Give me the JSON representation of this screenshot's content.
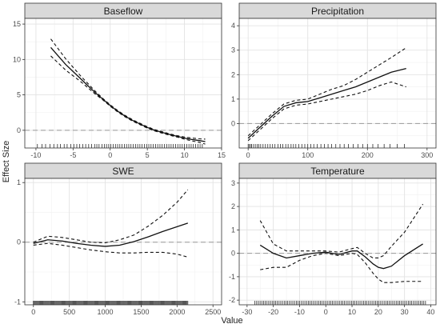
{
  "figure": {
    "ylabel": "Effect Size",
    "xlabel": "Value"
  },
  "chart_data": [
    {
      "type": "line",
      "title": "Baseflow",
      "xlim": [
        -11.5,
        15
      ],
      "ylim": [
        -2.5,
        15.8
      ],
      "xticks": [
        -10,
        -5,
        0,
        5,
        10,
        15
      ],
      "yticks": [
        -5,
        0,
        5,
        10,
        15
      ],
      "zero_line": 0,
      "series": [
        {
          "x": [
            -8,
            -7,
            -6,
            -5,
            -4,
            -3,
            -2,
            -1,
            0,
            1,
            2,
            3,
            4,
            5,
            6,
            7,
            8,
            9,
            10,
            11,
            12,
            12.8
          ],
          "y": [
            11.7,
            10.5,
            9.3,
            8.3,
            7.3,
            6.3,
            5.3,
            4.4,
            3.5,
            2.7,
            2.0,
            1.4,
            0.9,
            0.4,
            0.0,
            -0.3,
            -0.6,
            -0.85,
            -1.1,
            -1.3,
            -1.45,
            -1.6
          ]
        },
        {
          "x": [
            -8,
            -7,
            -6,
            -5,
            -4,
            -3,
            -2,
            -1,
            0,
            1,
            2,
            3,
            4,
            5,
            6,
            7,
            8,
            9,
            10,
            11,
            12,
            12.8
          ],
          "y": [
            12.9,
            11.5,
            10.1,
            8.9,
            7.7,
            6.6,
            5.5,
            4.5,
            3.6,
            2.8,
            2.1,
            1.5,
            1.0,
            0.5,
            0.1,
            -0.2,
            -0.5,
            -0.75,
            -0.95,
            -1.1,
            -1.2,
            -1.25
          ],
          "dash": true
        },
        {
          "x": [
            -8,
            -7,
            -6,
            -5,
            -4,
            -3,
            -2,
            -1,
            0,
            1,
            2,
            3,
            4,
            5,
            6,
            7,
            8,
            9,
            10,
            11,
            12,
            12.8
          ],
          "y": [
            10.5,
            9.5,
            8.5,
            7.7,
            6.9,
            6.0,
            5.1,
            4.3,
            3.4,
            2.6,
            1.9,
            1.3,
            0.8,
            0.3,
            -0.1,
            -0.4,
            -0.7,
            -0.95,
            -1.25,
            -1.5,
            -1.7,
            -1.95
          ],
          "dash": true
        }
      ],
      "rug": [
        -9.8,
        -9.2,
        -8.7,
        -8.1,
        -7.6,
        -7.1,
        -6.7,
        -6.2,
        -5.8,
        -5.3,
        -4.9,
        -4.5,
        -4.1,
        -3.7,
        -3.3,
        -2.9,
        -2.5,
        -2.1,
        -1.8,
        -1.5,
        -1.1,
        -0.8,
        -0.5,
        -0.2,
        0.1,
        0.4,
        0.7,
        1.0,
        1.3,
        1.6,
        1.9,
        2.2,
        2.5,
        2.8,
        3.1,
        3.4,
        3.7,
        4.0,
        4.3,
        4.6,
        4.9,
        5.2,
        5.5,
        5.8,
        6.1,
        6.4,
        6.7,
        7.0,
        7.3,
        7.6,
        7.9,
        8.2,
        8.5,
        8.8,
        9.1,
        9.4,
        9.7,
        10.0,
        10.3,
        10.6,
        10.9,
        11.2,
        11.5,
        11.8,
        12.1,
        12.4
      ]
    },
    {
      "type": "line",
      "title": "Precipitation",
      "xlim": [
        -15,
        315
      ],
      "ylim": [
        -1.0,
        4.3
      ],
      "xticks": [
        0,
        100,
        200,
        300
      ],
      "yticks": [
        0,
        1,
        2,
        3,
        4
      ],
      "zero_line": 0,
      "series": [
        {
          "x": [
            0,
            20,
            40,
            60,
            80,
            100,
            120,
            140,
            160,
            180,
            200,
            220,
            240,
            265
          ],
          "y": [
            -0.6,
            -0.15,
            0.3,
            0.7,
            0.85,
            0.9,
            1.05,
            1.2,
            1.35,
            1.5,
            1.7,
            1.9,
            2.1,
            2.25
          ]
        },
        {
          "x": [
            0,
            20,
            40,
            60,
            80,
            100,
            120,
            140,
            160,
            180,
            200,
            220,
            240,
            265
          ],
          "y": [
            -0.5,
            -0.05,
            0.4,
            0.8,
            0.95,
            1.0,
            1.2,
            1.4,
            1.55,
            1.8,
            2.1,
            2.4,
            2.7,
            3.1
          ],
          "dash": true
        },
        {
          "x": [
            0,
            20,
            40,
            60,
            80,
            100,
            120,
            140,
            160,
            180,
            200,
            220,
            240,
            265
          ],
          "y": [
            -0.7,
            -0.25,
            0.2,
            0.6,
            0.75,
            0.8,
            0.9,
            1.0,
            1.1,
            1.2,
            1.35,
            1.55,
            1.7,
            1.5
          ],
          "dash": true
        }
      ],
      "rug": [
        0,
        2,
        4,
        6,
        9,
        12,
        15,
        18,
        21,
        25,
        29,
        33,
        37,
        41,
        45,
        50,
        54,
        58,
        63,
        67,
        72,
        76,
        80,
        85,
        90,
        95,
        100,
        105,
        110,
        116,
        122,
        128,
        134,
        140,
        147,
        154,
        161,
        168,
        176,
        184,
        192,
        200,
        209,
        218,
        228,
        238,
        250,
        262
      ]
    },
    {
      "type": "line",
      "title": "SWE",
      "xlim": [
        -120,
        2620
      ],
      "ylim": [
        -1.05,
        1.07
      ],
      "xticks": [
        0,
        500,
        1000,
        1500,
        2000,
        2500
      ],
      "yticks": [
        -1,
        0,
        1
      ],
      "zero_line": 0,
      "series": [
        {
          "x": [
            0,
            200,
            400,
            600,
            800,
            1000,
            1200,
            1400,
            1600,
            1800,
            2000,
            2150
          ],
          "y": [
            -0.02,
            0.04,
            0.02,
            -0.02,
            -0.05,
            -0.07,
            -0.05,
            0.01,
            0.09,
            0.18,
            0.26,
            0.32
          ]
        },
        {
          "x": [
            0,
            200,
            400,
            600,
            800,
            1000,
            1200,
            1400,
            1600,
            1800,
            2000,
            2150
          ],
          "y": [
            0.0,
            0.1,
            0.08,
            0.04,
            0.0,
            -0.01,
            0.04,
            0.12,
            0.27,
            0.45,
            0.67,
            0.88
          ],
          "dash": true
        },
        {
          "x": [
            0,
            200,
            400,
            600,
            800,
            1000,
            1200,
            1400,
            1600,
            1800,
            2000,
            2150
          ],
          "y": [
            -0.05,
            -0.02,
            -0.05,
            -0.09,
            -0.13,
            -0.16,
            -0.18,
            -0.18,
            -0.17,
            -0.17,
            -0.2,
            -0.25
          ],
          "dash": true
        }
      ],
      "rug_range": [
        0,
        2150,
        180
      ]
    },
    {
      "type": "line",
      "title": "Temperature",
      "xlim": [
        -33,
        42
      ],
      "ylim": [
        -2.2,
        3.2
      ],
      "xticks": [
        -30,
        -20,
        -10,
        0,
        10,
        20,
        30,
        40
      ],
      "yticks": [
        -2,
        -1,
        0,
        1,
        2,
        3
      ],
      "zero_line": 0,
      "series": [
        {
          "x": [
            -25,
            -20,
            -15,
            -10,
            -5,
            0,
            5,
            10,
            12,
            15,
            18,
            20,
            22,
            25,
            30,
            37
          ],
          "y": [
            0.35,
            0.0,
            -0.2,
            -0.1,
            0.0,
            0.05,
            -0.05,
            0.1,
            0.1,
            -0.15,
            -0.45,
            -0.6,
            -0.65,
            -0.55,
            -0.1,
            0.4
          ]
        },
        {
          "x": [
            -25,
            -20,
            -15,
            -10,
            -5,
            0,
            5,
            10,
            12,
            15,
            18,
            20,
            22,
            25,
            30,
            37
          ],
          "y": [
            1.4,
            0.4,
            0.1,
            0.1,
            0.1,
            0.1,
            0.05,
            0.2,
            0.25,
            0.0,
            -0.2,
            -0.2,
            -0.1,
            0.3,
            0.9,
            2.1
          ],
          "dash": true
        },
        {
          "x": [
            -25,
            -20,
            -15,
            -10,
            -5,
            0,
            5,
            10,
            12,
            15,
            18,
            20,
            22,
            25,
            30,
            37
          ],
          "y": [
            -0.7,
            -0.6,
            -0.6,
            -0.3,
            -0.1,
            0.0,
            -0.1,
            0.0,
            -0.05,
            -0.4,
            -0.85,
            -1.1,
            -1.25,
            -1.25,
            -1.2,
            -1.2
          ],
          "dash": true
        }
      ],
      "rug_range": [
        -27,
        38,
        100
      ]
    }
  ]
}
